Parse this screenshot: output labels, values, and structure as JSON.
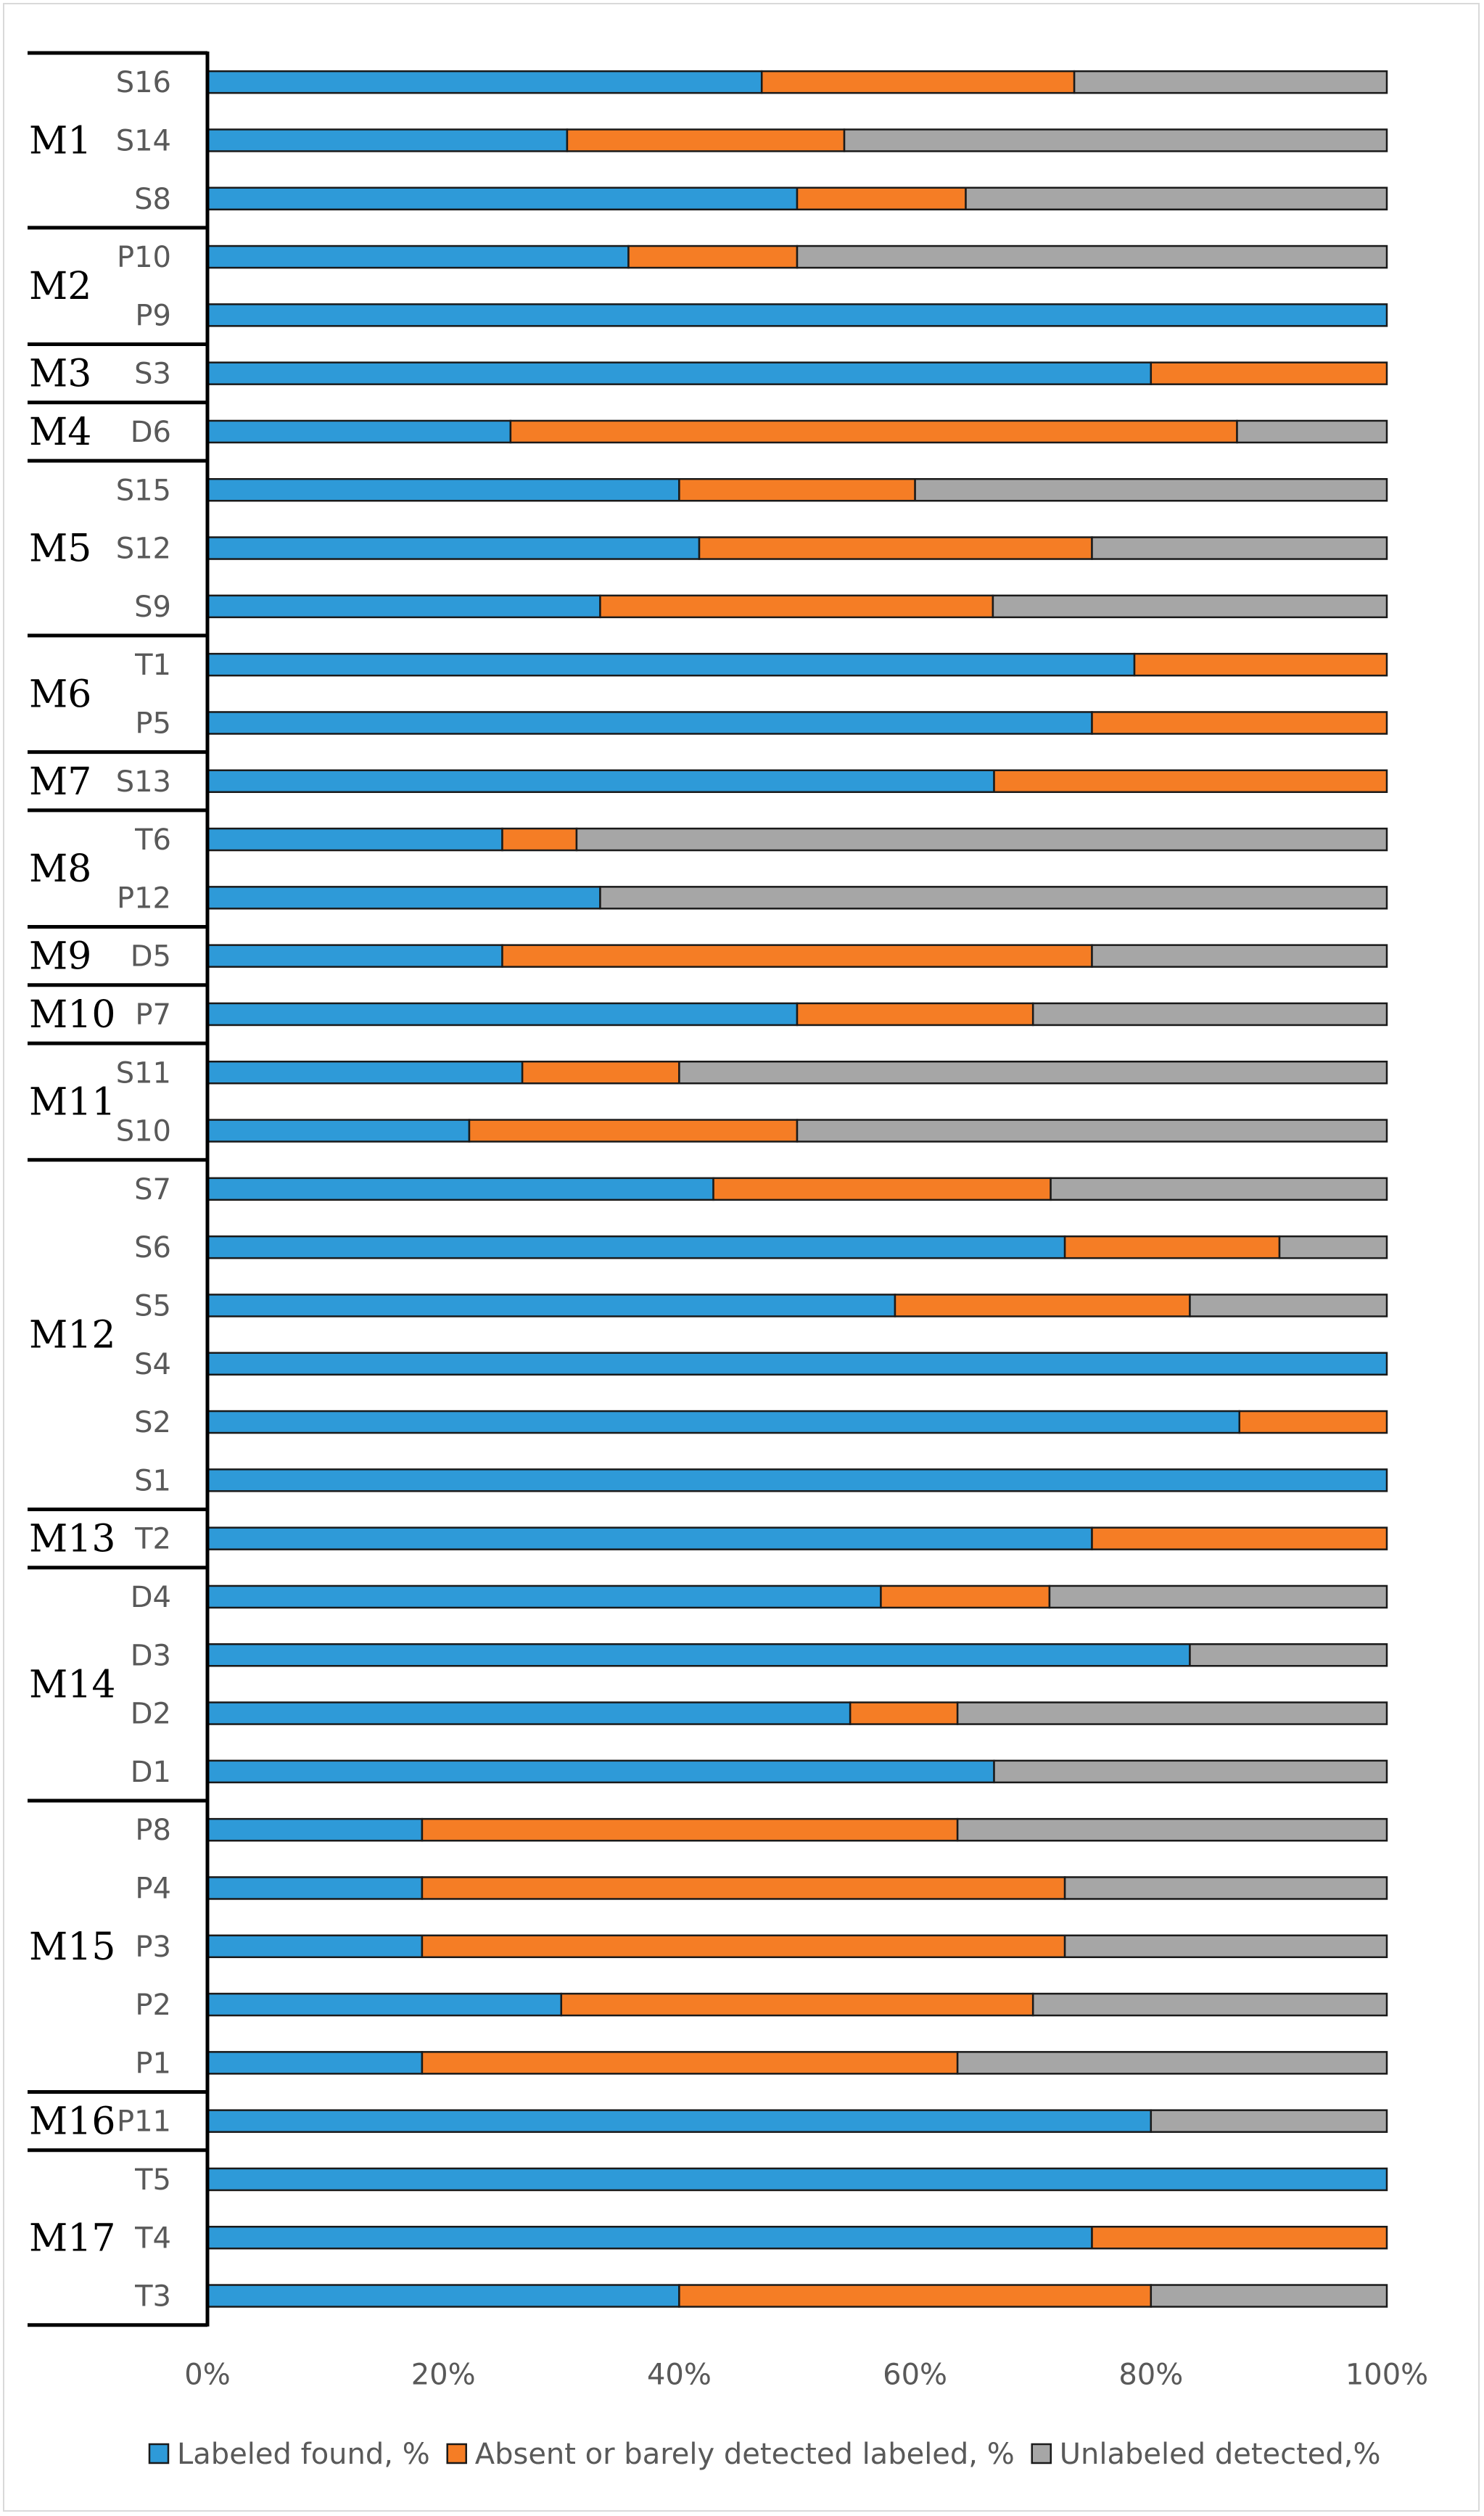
{
  "chart_data": {
    "type": "bar",
    "orientation": "horizontal",
    "stacked": "percent",
    "title": "",
    "xlabel": "",
    "ylabel": "",
    "xlim": [
      0,
      100
    ],
    "x_ticks": [
      "0%",
      "20%",
      "40%",
      "60%",
      "80%",
      "100%"
    ],
    "legend_position": "bottom",
    "series": [
      {
        "name": "Labeled found, %",
        "color": "#2e9ad8"
      },
      {
        "name": "Absent or barely detected labeled, %",
        "color": "#f57d25"
      },
      {
        "name": "Unlabeled detected,%",
        "color": "#a6a6a6"
      }
    ],
    "groups": [
      {
        "name": "M1",
        "rows": [
          {
            "label": "S16",
            "values": [
              47,
              26.5,
              26.5
            ]
          },
          {
            "label": "S14",
            "values": [
              30.5,
              23.5,
              46
            ]
          },
          {
            "label": "S8",
            "values": [
              50,
              14.3,
              35.7
            ]
          }
        ]
      },
      {
        "name": "M2",
        "rows": [
          {
            "label": "P10",
            "values": [
              35.7,
              14.3,
              50
            ]
          },
          {
            "label": "P9",
            "values": [
              100,
              0,
              0
            ]
          }
        ]
      },
      {
        "name": "M3",
        "rows": [
          {
            "label": "S3",
            "values": [
              80,
              20,
              0
            ]
          }
        ]
      },
      {
        "name": "M4",
        "rows": [
          {
            "label": "D6",
            "values": [
              25.7,
              61.6,
              12.7
            ]
          }
        ]
      },
      {
        "name": "M5",
        "rows": [
          {
            "label": "S15",
            "values": [
              40,
              20,
              40
            ]
          },
          {
            "label": "S12",
            "values": [
              41.7,
              33.3,
              25
            ]
          },
          {
            "label": "S9",
            "values": [
              33.3,
              33.3,
              33.4
            ]
          }
        ]
      },
      {
        "name": "M6",
        "rows": [
          {
            "label": "T1",
            "values": [
              78.6,
              21.4,
              0
            ]
          },
          {
            "label": "P5",
            "values": [
              75,
              25,
              0
            ]
          }
        ]
      },
      {
        "name": "M7",
        "rows": [
          {
            "label": "S13",
            "values": [
              66.7,
              33.3,
              0
            ]
          }
        ]
      },
      {
        "name": "M8",
        "rows": [
          {
            "label": "T6",
            "values": [
              25,
              6.3,
              68.7
            ]
          },
          {
            "label": "P12",
            "values": [
              33.3,
              0,
              66.7
            ]
          }
        ]
      },
      {
        "name": "M9",
        "rows": [
          {
            "label": "D5",
            "values": [
              25,
              50,
              25
            ]
          }
        ]
      },
      {
        "name": "M10",
        "rows": [
          {
            "label": "P7",
            "values": [
              50,
              20,
              30
            ]
          }
        ]
      },
      {
        "name": "M11",
        "rows": [
          {
            "label": "S11",
            "values": [
              26.7,
              13.3,
              60
            ]
          },
          {
            "label": "S10",
            "values": [
              22.2,
              27.8,
              50
            ]
          }
        ]
      },
      {
        "name": "M12",
        "rows": [
          {
            "label": "S7",
            "values": [
              42.9,
              28.6,
              28.5
            ]
          },
          {
            "label": "S6",
            "values": [
              72.7,
              18.2,
              9.1
            ]
          },
          {
            "label": "S5",
            "values": [
              58.3,
              25,
              16.7
            ]
          },
          {
            "label": "S4",
            "values": [
              100,
              0,
              0
            ]
          },
          {
            "label": "S2",
            "values": [
              87.5,
              12.5,
              0
            ]
          },
          {
            "label": "S1",
            "values": [
              100,
              0,
              0
            ]
          }
        ]
      },
      {
        "name": "M13",
        "rows": [
          {
            "label": "T2",
            "values": [
              75,
              25,
              0
            ]
          }
        ]
      },
      {
        "name": "M14",
        "rows": [
          {
            "label": "D4",
            "values": [
              57.1,
              14.3,
              28.6
            ]
          },
          {
            "label": "D3",
            "values": [
              83.3,
              0,
              16.7
            ]
          },
          {
            "label": "D2",
            "values": [
              54.5,
              9.1,
              36.4
            ]
          },
          {
            "label": "D1",
            "values": [
              66.7,
              0,
              33.3
            ]
          }
        ]
      },
      {
        "name": "M15",
        "rows": [
          {
            "label": "P8",
            "values": [
              18.2,
              45.4,
              36.4
            ]
          },
          {
            "label": "P4",
            "values": [
              18.2,
              54.5,
              27.3
            ]
          },
          {
            "label": "P3",
            "values": [
              18.2,
              54.5,
              27.3
            ]
          },
          {
            "label": "P2",
            "values": [
              30,
              40,
              30
            ]
          },
          {
            "label": "P1",
            "values": [
              18.2,
              45.4,
              36.4
            ]
          }
        ]
      },
      {
        "name": "M16",
        "rows": [
          {
            "label": "P11",
            "values": [
              80,
              0,
              20
            ]
          }
        ]
      },
      {
        "name": "M17",
        "rows": [
          {
            "label": "T5",
            "values": [
              100,
              0,
              0
            ]
          },
          {
            "label": "T4",
            "values": [
              75,
              25,
              0
            ]
          },
          {
            "label": "T3",
            "values": [
              40,
              40,
              20
            ]
          }
        ]
      }
    ]
  }
}
